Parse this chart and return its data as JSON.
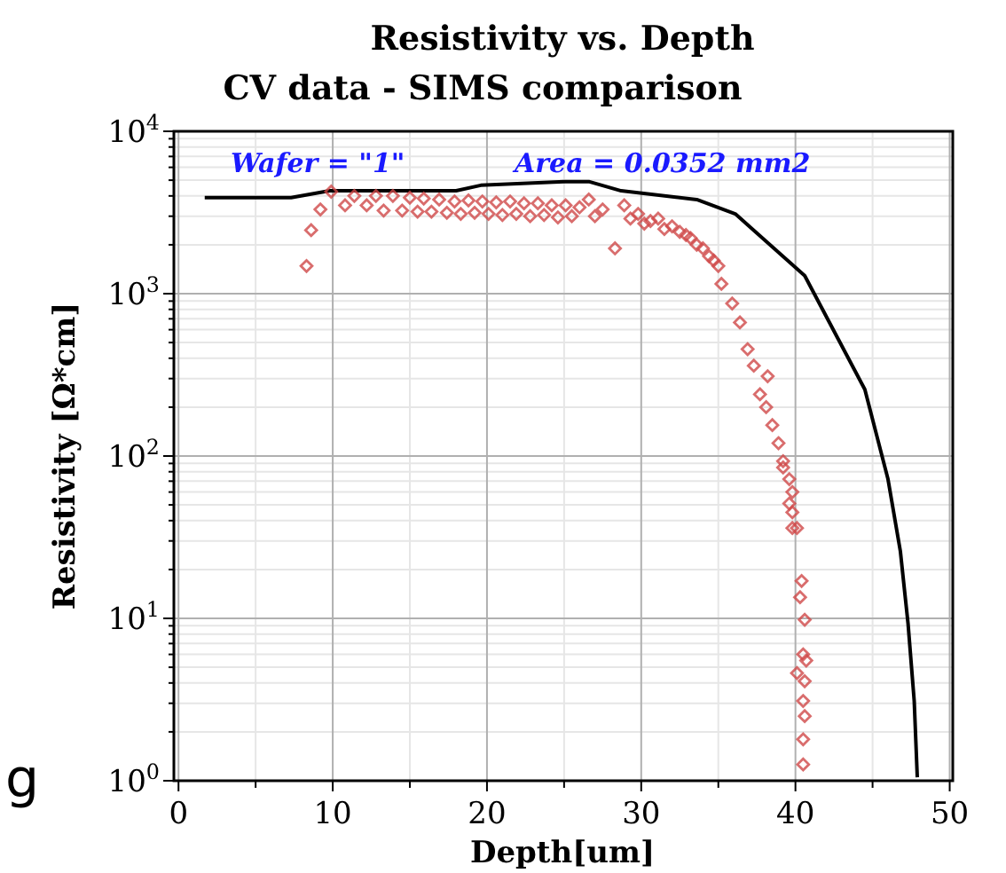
{
  "chart_data": {
    "type": "scatter",
    "title": "Resistivity vs. Depth",
    "subtitle": "CV data - SIMS comparison",
    "xlabel": "Depth[um]",
    "ylabel": "Resistivity [Ω*cm]",
    "log": "y",
    "grid": true,
    "marker": "diamond",
    "xlim": [
      -0.3,
      50.2
    ],
    "xticks": [
      0,
      10,
      20,
      30,
      40,
      50
    ],
    "ylim": [
      1,
      10000
    ],
    "yticks": [
      {
        "value": 1,
        "label": "10$^{0}$"
      },
      {
        "value": 10,
        "label": "10$^{1}$"
      },
      {
        "value": 100,
        "label": "10$^{2}$"
      },
      {
        "value": 1000,
        "label": "10$^{3}$"
      },
      {
        "value": 10000,
        "label": "10$^{4}$"
      }
    ],
    "annotations": [
      "Wafer = \"1\"",
      "Area = 0.0352 mm2",
      "g"
    ],
    "series": [
      {
        "type": "line",
        "marker": "none",
        "color": "#000000",
        "x": [
          1.7,
          7.3,
          9.8,
          18,
          19.6,
          25,
          26.6,
          28.7,
          33.6,
          36.1,
          40.6,
          44.5,
          46,
          46.8,
          47.3,
          47.7,
          47.9
        ],
        "values": [
          3900,
          3900,
          4300,
          4300,
          4650,
          4900,
          4900,
          4300,
          3800,
          3100,
          1290,
          257,
          72,
          26,
          9.3,
          3.1,
          1.05
        ]
      },
      {
        "color": "#d04848",
        "x": [
          8.3,
          8.6,
          9.2,
          9.9,
          10.8,
          11.4,
          12.2,
          12.8,
          13.3,
          13.9,
          14.5,
          15.0,
          15.5,
          15.9,
          16.4,
          16.9,
          17.4,
          17.9,
          18.3,
          18.8,
          19.2,
          19.7,
          20.1,
          20.6,
          21.0,
          21.5,
          21.9,
          22.4,
          22.8,
          23.3,
          23.7,
          24.2,
          24.6,
          25.1,
          25.5,
          26.0,
          26.6,
          27.0,
          27.5,
          28.3,
          28.9,
          29.3,
          29.8,
          30.2,
          30.6,
          31.1,
          31.5,
          32.0,
          32.5,
          32.9,
          33.2,
          33.6,
          34.0,
          34.4,
          34.7,
          35.0,
          35.2,
          35.9,
          36.4,
          36.9,
          37.3,
          37.7,
          38.1,
          38.2,
          38.5,
          38.9,
          39.2,
          39.2,
          39.6,
          39.6,
          39.8,
          39.8,
          39.8,
          40.1,
          40.3,
          40.4,
          40.6,
          40.5,
          40.7,
          40.1,
          40.6,
          40.5,
          40.6,
          40.5,
          40.5
        ],
        "values": [
          1480,
          2460,
          3300,
          4250,
          3500,
          4000,
          3500,
          4000,
          3250,
          4000,
          3250,
          3900,
          3200,
          3850,
          3200,
          3800,
          3150,
          3700,
          3100,
          3750,
          3150,
          3700,
          3100,
          3650,
          3050,
          3700,
          3100,
          3600,
          3000,
          3600,
          3050,
          3500,
          2950,
          3500,
          3000,
          3400,
          3800,
          3000,
          3300,
          1900,
          3500,
          2900,
          3100,
          2700,
          2800,
          2900,
          2500,
          2600,
          2400,
          2300,
          2200,
          2000,
          1900,
          1700,
          1600,
          1480,
          1150,
          870,
          665,
          455,
          360,
          240,
          200,
          310,
          155,
          120,
          93,
          85,
          72,
          51,
          60,
          45,
          36,
          36,
          13.5,
          17,
          9.8,
          6.0,
          5.5,
          4.6,
          4.1,
          3.1,
          2.5,
          1.8,
          1.26
        ]
      }
    ]
  }
}
